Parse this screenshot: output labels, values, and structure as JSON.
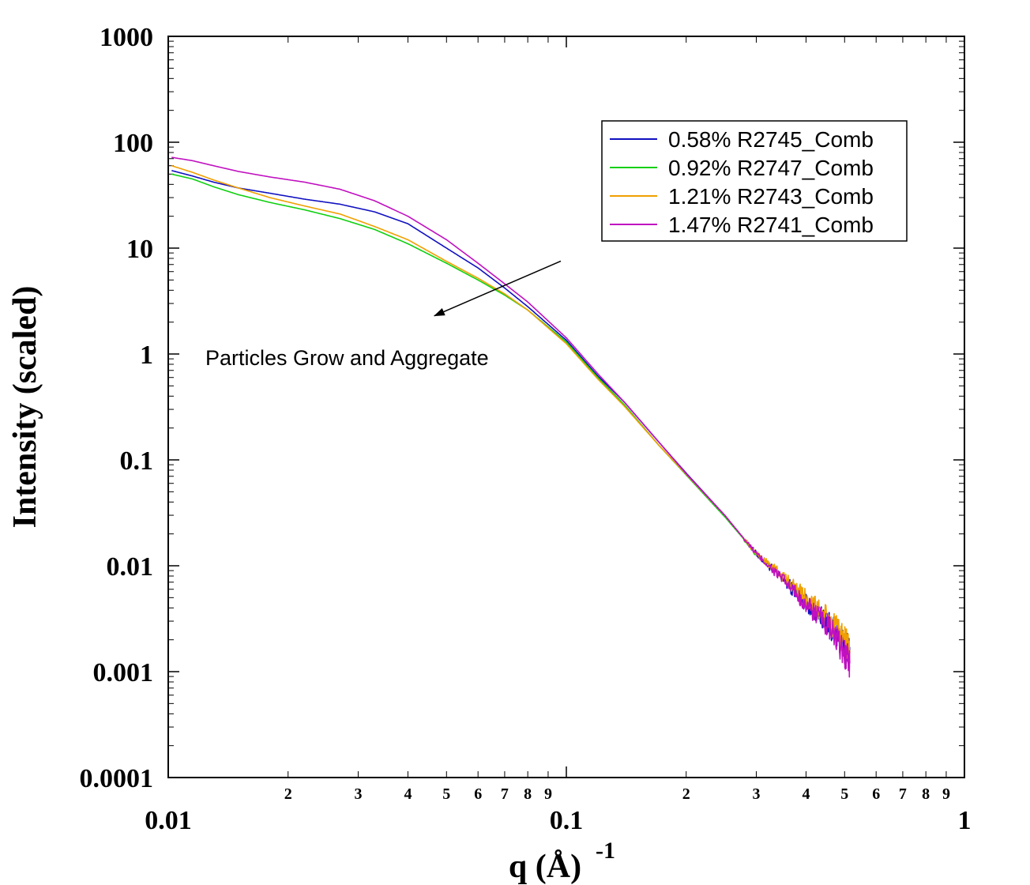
{
  "chart_data": {
    "type": "line",
    "xlabel": "q (Å)",
    "xlabel_superscript": "-1",
    "ylabel": "Intensity (scaled)",
    "xscale": "log",
    "yscale": "log",
    "xlim": [
      0.01,
      1
    ],
    "ylim": [
      0.0001,
      1000
    ],
    "x_major_ticks": [
      {
        "value": 0.01,
        "label": "0.01"
      },
      {
        "value": 0.1,
        "label": "0.1"
      },
      {
        "value": 1,
        "label": "1"
      }
    ],
    "x_minor_ticks": [
      {
        "value": 0.02,
        "label": "2"
      },
      {
        "value": 0.03,
        "label": "3"
      },
      {
        "value": 0.04,
        "label": "4"
      },
      {
        "value": 0.05,
        "label": "5"
      },
      {
        "value": 0.06,
        "label": "6"
      },
      {
        "value": 0.07,
        "label": "7"
      },
      {
        "value": 0.08,
        "label": "8"
      },
      {
        "value": 0.09,
        "label": "9"
      },
      {
        "value": 0.2,
        "label": "2"
      },
      {
        "value": 0.3,
        "label": "3"
      },
      {
        "value": 0.4,
        "label": "4"
      },
      {
        "value": 0.5,
        "label": "5"
      },
      {
        "value": 0.6,
        "label": "6"
      },
      {
        "value": 0.7,
        "label": "7"
      },
      {
        "value": 0.8,
        "label": "8"
      },
      {
        "value": 0.9,
        "label": "9"
      }
    ],
    "y_major_ticks": [
      {
        "value": 1000,
        "label": "1000"
      },
      {
        "value": 100,
        "label": "100"
      },
      {
        "value": 10,
        "label": "10"
      },
      {
        "value": 1,
        "label": "1"
      },
      {
        "value": 0.1,
        "label": "0.1"
      },
      {
        "value": 0.01,
        "label": "0.01"
      },
      {
        "value": 0.001,
        "label": "0.001"
      },
      {
        "value": 0.0001,
        "label": "0.0001"
      }
    ],
    "grid": false,
    "legend_position": "top-right",
    "annotation": {
      "text": "Particles Grow and Aggregate",
      "arrow_from": [
        0.1,
        12
      ],
      "arrow_to": [
        0.0466,
        2.5
      ]
    },
    "series": [
      {
        "name": "0.58% R2745_Comb",
        "color": "#1010c0",
        "noise_from": 0.28,
        "x": [
          0.0102,
          0.0115,
          0.013,
          0.015,
          0.018,
          0.022,
          0.027,
          0.033,
          0.04,
          0.05,
          0.06,
          0.07,
          0.08,
          0.1,
          0.12,
          0.14,
          0.17,
          0.2,
          0.25,
          0.3,
          0.35,
          0.4,
          0.45,
          0.5,
          0.515
        ],
        "y": [
          54,
          48,
          42,
          37,
          33,
          29,
          26,
          22,
          17,
          10,
          6.5,
          4.2,
          2.8,
          1.35,
          0.62,
          0.35,
          0.15,
          0.075,
          0.03,
          0.013,
          0.0075,
          0.0045,
          0.003,
          0.0018,
          0.0015
        ]
      },
      {
        "name": "0.92% R2747_Comb",
        "color": "#10d010",
        "noise_from": 0.28,
        "x": [
          0.0102,
          0.0115,
          0.013,
          0.015,
          0.018,
          0.022,
          0.027,
          0.033,
          0.04,
          0.05,
          0.06,
          0.07,
          0.08,
          0.1,
          0.12,
          0.14,
          0.17,
          0.2,
          0.25,
          0.3
        ],
        "y": [
          50,
          45,
          38,
          32,
          27,
          23,
          19,
          15,
          11,
          7.2,
          5,
          3.6,
          2.6,
          1.3,
          0.6,
          0.33,
          0.14,
          0.072,
          0.029,
          0.013
        ]
      },
      {
        "name": "1.21% R2743_Comb",
        "color": "#f0a000",
        "noise_from": 0.28,
        "x": [
          0.0102,
          0.0115,
          0.013,
          0.015,
          0.018,
          0.022,
          0.027,
          0.033,
          0.04,
          0.05,
          0.06,
          0.07,
          0.08,
          0.1,
          0.12,
          0.14,
          0.17,
          0.2,
          0.25,
          0.3,
          0.35,
          0.4,
          0.45,
          0.5,
          0.515
        ],
        "y": [
          60,
          52,
          44,
          37,
          30,
          25,
          21,
          16,
          12,
          7.5,
          5.2,
          3.7,
          2.6,
          1.25,
          0.58,
          0.32,
          0.14,
          0.073,
          0.03,
          0.013,
          0.008,
          0.005,
          0.0033,
          0.002,
          0.0016
        ]
      },
      {
        "name": "1.47% R2741_Comb",
        "color": "#c010c0",
        "noise_from": 0.28,
        "x": [
          0.0102,
          0.0115,
          0.013,
          0.015,
          0.018,
          0.022,
          0.027,
          0.033,
          0.04,
          0.05,
          0.06,
          0.07,
          0.08,
          0.1,
          0.12,
          0.14,
          0.17,
          0.2,
          0.25,
          0.3,
          0.35,
          0.4,
          0.45,
          0.5,
          0.515
        ],
        "y": [
          72,
          67,
          60,
          53,
          47,
          42,
          36,
          28,
          20,
          12,
          7.2,
          4.6,
          3.1,
          1.42,
          0.65,
          0.35,
          0.15,
          0.074,
          0.03,
          0.013,
          0.0074,
          0.0043,
          0.0028,
          0.0015,
          0.0012
        ]
      }
    ]
  }
}
